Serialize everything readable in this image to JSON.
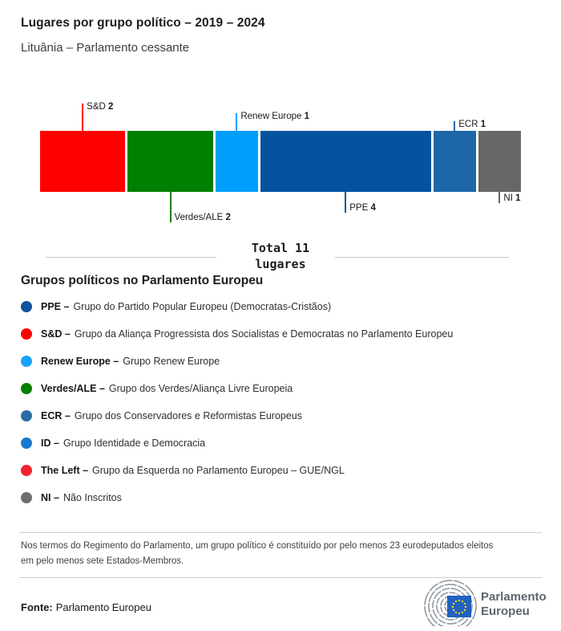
{
  "header": {
    "title": "Lugares por grupo político – 2019 – 2024",
    "subtitle": "Lituânia – Parlamento cessante"
  },
  "chart_data": {
    "type": "bar",
    "subtype": "horizontal-stacked-seat-bar",
    "title": "Lugares por grupo político – 2019 – 2024",
    "total_seats": 11,
    "total_line1": "Total 11",
    "total_line2": "lugares",
    "grid": false,
    "legend_position": "below",
    "segments": [
      {
        "name": "S&D",
        "value": 2,
        "color": "#fe0000",
        "label_position": "above"
      },
      {
        "name": "Verdes/ALE",
        "value": 2,
        "color": "#008000",
        "label_position": "below"
      },
      {
        "name": "Renew Europe",
        "value": 1,
        "color": "#009ffe",
        "label_position": "above"
      },
      {
        "name": "PPE",
        "value": 4,
        "color": "#0353a0",
        "label_position": "below"
      },
      {
        "name": "ECR",
        "value": 1,
        "color": "#1d67a9",
        "label_position": "above"
      },
      {
        "name": "NI",
        "value": 1,
        "color": "#676767",
        "label_position": "below"
      }
    ]
  },
  "legend": {
    "heading": "Grupos políticos no Parlamento Europeu",
    "items": [
      {
        "abbr": "PPE –",
        "description": "Grupo do Partido Popular Europeu (Democratas-Cristãos)",
        "color": "#0e529e"
      },
      {
        "abbr": "S&D –",
        "description": "Grupo da Aliança Progressista dos Socialistas e Democratas no Parlamento Europeu",
        "color": "#fe0000"
      },
      {
        "abbr": "Renew Europe –",
        "description": "Grupo Renew Europe",
        "color": "#18a0fb"
      },
      {
        "abbr": "Verdes/ALE –",
        "description": "Grupo dos Verdes/Aliança Livre Europeia",
        "color": "#038003"
      },
      {
        "abbr": "ECR –",
        "description": "Grupo dos Conservadores e Reformistas Europeus",
        "color": "#2d6ba6"
      },
      {
        "abbr": "ID –",
        "description": "Grupo Identidade e Democracia",
        "color": "#1a78d0"
      },
      {
        "abbr": "The Left –",
        "description": "Grupo da Esquerda no Parlamento Europeu – GUE/NGL",
        "color": "#f2242e"
      },
      {
        "abbr": "NI –",
        "description": "Não Inscritos",
        "color": "#6e6e6e"
      }
    ]
  },
  "footer": {
    "note_line1": "Nos termos do Regimento do Parlamento, um grupo político é constituído por pelo menos 23 eurodeputados eleitos",
    "note_line2": "em pelo menos sete Estados-Membros.",
    "source_label": "Fonte:",
    "source_value": "Parlamento Europeu",
    "logo_text_line1": "Parlamento",
    "logo_text_line2": "Europeu"
  }
}
